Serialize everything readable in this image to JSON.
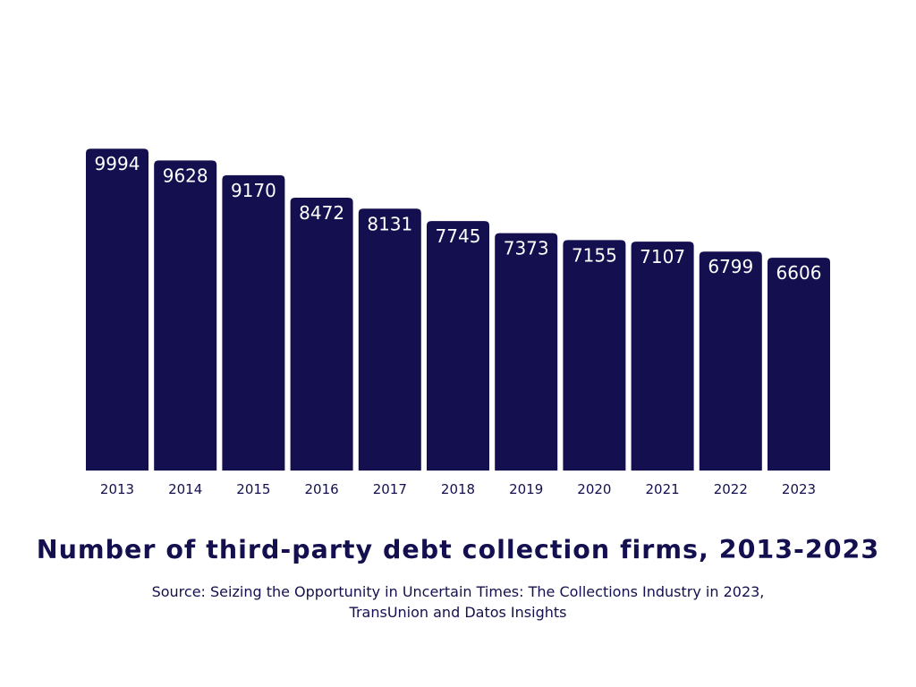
{
  "chart_data": {
    "type": "bar",
    "title": "Number of third-party debt collection firms, 2013-2023",
    "source_line1": "Source: Seizing the Opportunity in Uncertain Times: The Collections Industry in 2023,",
    "source_line2": "TransUnion and Datos Insights",
    "categories": [
      "2013",
      "2014",
      "2015",
      "2016",
      "2017",
      "2018",
      "2019",
      "2020",
      "2021",
      "2022",
      "2023"
    ],
    "values": [
      9994,
      9628,
      9170,
      8472,
      8131,
      7745,
      7373,
      7155,
      7107,
      6799,
      6606
    ],
    "xlabel": "",
    "ylabel": "",
    "ylim": [
      0,
      10000
    ],
    "grid": false,
    "data_labels": true,
    "colors": {
      "bar": "#14104f",
      "label": "#ffffff",
      "text": "#14104f"
    }
  }
}
